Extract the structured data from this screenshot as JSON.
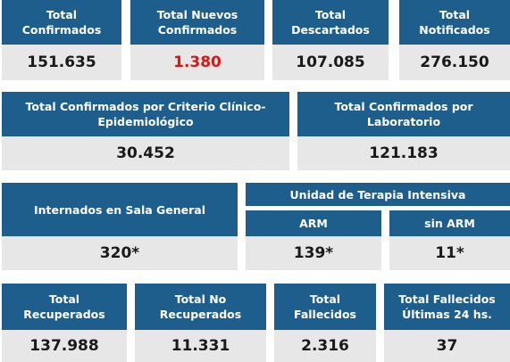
{
  "row1": [
    {
      "label": [
        "Total",
        "Confirmados"
      ],
      "value": "151.635",
      "highlight": false
    },
    {
      "label": [
        "Total Nuevos",
        "Confirmados"
      ],
      "value": "1.380",
      "highlight": true
    },
    {
      "label": [
        "Total",
        "Descartados"
      ],
      "value": "107.085",
      "highlight": false
    },
    {
      "label": [
        "Total",
        "Notificados"
      ],
      "value": "276.150",
      "highlight": false
    }
  ],
  "row2": [
    {
      "label": [
        "Total Confirmados por Criterio Clínico-",
        "Epidemiológico"
      ],
      "value": "30.452"
    },
    {
      "label": [
        "Total Confirmados por",
        "Laboratorio"
      ],
      "value": "121.183"
    }
  ],
  "row3": {
    "sala_general": {
      "label": "Internados en Sala General",
      "value": "320*"
    },
    "uti": {
      "title": "Unidad de Terapia Intensiva",
      "arm": {
        "label": "ARM",
        "value": "139*"
      },
      "sin_arm": {
        "label": "sin ARM",
        "value": "11*"
      }
    }
  },
  "row4": [
    {
      "label": [
        "Total",
        "Recuperados"
      ],
      "value": "137.988"
    },
    {
      "label": [
        "Total No",
        "Recuperados"
      ],
      "value": "11.331"
    },
    {
      "label": [
        "Total",
        "Fallecidos"
      ],
      "value": "2.316"
    },
    {
      "label": [
        "Total Fallecidos",
        "Últimas 24 hs."
      ],
      "value": "37"
    }
  ],
  "colors": {
    "header": "#1d5e8c",
    "value_bg": "#e7e7e7",
    "highlight": "#e01414"
  }
}
